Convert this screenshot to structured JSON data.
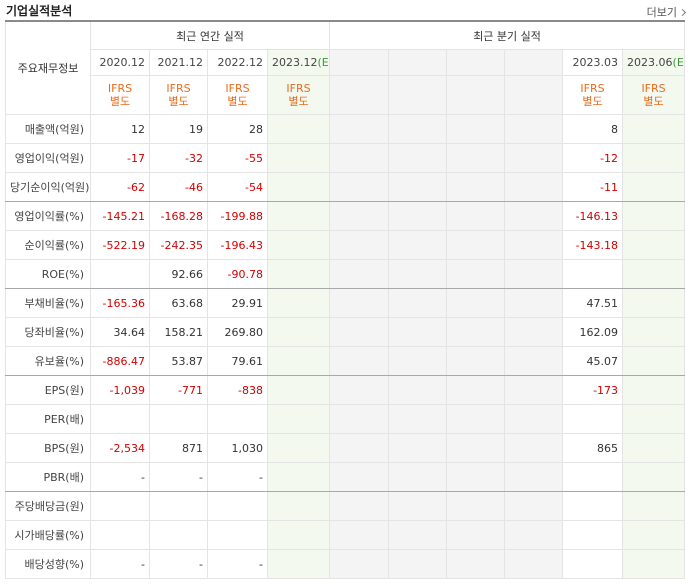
{
  "header": {
    "title": "기업실적분석",
    "more": "더보기"
  },
  "table": {
    "corner": "주요재무정보",
    "annual_title": "최근 연간 실적",
    "quarter_title": "최근 분기 실적",
    "annual_cols": [
      {
        "date": "2020.12",
        "est": null
      },
      {
        "date": "2021.12",
        "est": null
      },
      {
        "date": "2022.12",
        "est": null
      },
      {
        "date": "2023.12",
        "est": "(E)"
      }
    ],
    "quarter_cols": [
      {
        "date": null,
        "est": null
      },
      {
        "date": null,
        "est": null
      },
      {
        "date": null,
        "est": null
      },
      {
        "date": null,
        "est": null
      },
      {
        "date": "2023.03",
        "est": null
      },
      {
        "date": "2023.06",
        "est": "(E)"
      }
    ],
    "annual_basis": [
      [
        "IFRS",
        "별도"
      ],
      [
        "IFRS",
        "별도"
      ],
      [
        "IFRS",
        "별도"
      ],
      [
        "IFRS",
        "별도"
      ]
    ],
    "quarter_basis": [
      null,
      null,
      null,
      null,
      [
        "IFRS",
        "별도"
      ],
      [
        "IFRS",
        "별도"
      ]
    ],
    "rows": [
      {
        "label": "매출액(억원)",
        "annual": [
          "12",
          "19",
          "28",
          null
        ],
        "quarter": [
          null,
          null,
          null,
          null,
          "8",
          null
        ]
      },
      {
        "label": "영업이익(억원)",
        "annual": [
          "-17",
          "-32",
          "-55",
          null
        ],
        "quarter": [
          null,
          null,
          null,
          null,
          "-12",
          null
        ]
      },
      {
        "label": "당기순이익(억원)",
        "annual": [
          "-62",
          "-46",
          "-54",
          null
        ],
        "quarter": [
          null,
          null,
          null,
          null,
          "-11",
          null
        ]
      },
      {
        "label": "영업이익률(%)",
        "annual": [
          "-145.21",
          "-168.28",
          "-199.88",
          null
        ],
        "quarter": [
          null,
          null,
          null,
          null,
          "-146.13",
          null
        ]
      },
      {
        "label": "순이익률(%)",
        "annual": [
          "-522.19",
          "-242.35",
          "-196.43",
          null
        ],
        "quarter": [
          null,
          null,
          null,
          null,
          "-143.18",
          null
        ]
      },
      {
        "label": "ROE(%)",
        "annual": [
          null,
          "92.66",
          "-90.78",
          null
        ],
        "quarter": [
          null,
          null,
          null,
          null,
          null,
          null
        ]
      },
      {
        "label": "부채비율(%)",
        "annual": [
          "-165.36",
          "63.68",
          "29.91",
          null
        ],
        "quarter": [
          null,
          null,
          null,
          null,
          "47.51",
          null
        ]
      },
      {
        "label": "당좌비율(%)",
        "annual": [
          "34.64",
          "158.21",
          "269.80",
          null
        ],
        "quarter": [
          null,
          null,
          null,
          null,
          "162.09",
          null
        ]
      },
      {
        "label": "유보율(%)",
        "annual": [
          "-886.47",
          "53.87",
          "79.61",
          null
        ],
        "quarter": [
          null,
          null,
          null,
          null,
          "45.07",
          null
        ]
      },
      {
        "label": "EPS(원)",
        "annual": [
          "-1,039",
          "-771",
          "-838",
          null
        ],
        "quarter": [
          null,
          null,
          null,
          null,
          "-173",
          null
        ]
      },
      {
        "label": "PER(배)",
        "annual": [
          null,
          null,
          null,
          null
        ],
        "quarter": [
          null,
          null,
          null,
          null,
          null,
          null
        ]
      },
      {
        "label": "BPS(원)",
        "annual": [
          "-2,534",
          "871",
          "1,030",
          null
        ],
        "quarter": [
          null,
          null,
          null,
          null,
          "865",
          null
        ]
      },
      {
        "label": "PBR(배)",
        "annual": [
          "-",
          "-",
          "-",
          null
        ],
        "quarter": [
          null,
          null,
          null,
          null,
          null,
          null
        ]
      },
      {
        "label": "주당배당금(원)",
        "annual": [
          null,
          null,
          null,
          null
        ],
        "quarter": [
          null,
          null,
          null,
          null,
          null,
          null
        ]
      },
      {
        "label": "시가배당률(%)",
        "annual": [
          null,
          null,
          null,
          null
        ],
        "quarter": [
          null,
          null,
          null,
          null,
          null,
          null
        ]
      },
      {
        "label": "배당성향(%)",
        "annual": [
          "-",
          "-",
          "-",
          null
        ],
        "quarter": [
          null,
          null,
          null,
          null,
          null,
          null
        ]
      }
    ],
    "group_ends": [
      2,
      5,
      8,
      12
    ]
  }
}
